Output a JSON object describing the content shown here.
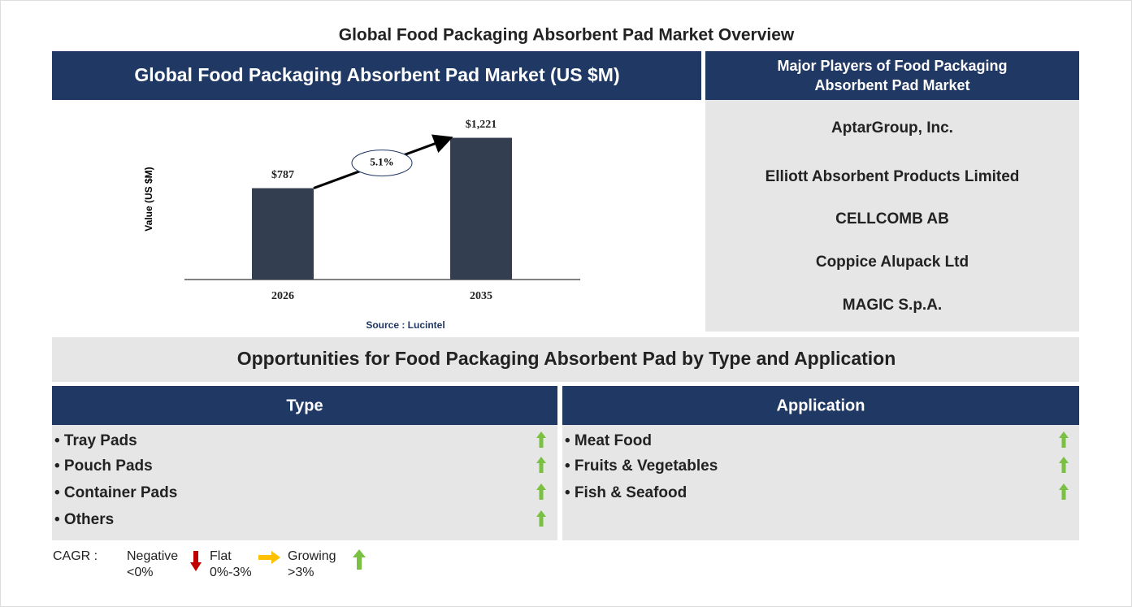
{
  "title": "Global Food Packaging Absorbent Pad Market Overview",
  "chart_panel": {
    "header": "Global Food Packaging Absorbent Pad Market (US $M)"
  },
  "chart_data": {
    "type": "bar",
    "categories": [
      "2026",
      "2035"
    ],
    "values": [
      787,
      1221
    ],
    "value_labels": [
      "$787",
      "$1,221"
    ],
    "color": "#333f50",
    "ylim": [
      0,
      1400
    ],
    "y_label": "Value (US $M)",
    "annotation": "5.1%",
    "source": "Source : Lucintel"
  },
  "players": {
    "header_lines": [
      "Major Players of Food Packaging",
      "Absorbent Pad Market"
    ],
    "items": [
      "AptarGroup, Inc.",
      "Elliott Absorbent Products Limited",
      "CELLCOMB AB",
      "Coppice Alupack Ltd",
      "MAGIC S.p.A."
    ]
  },
  "opportunities": {
    "title": "Opportunities for Food Packaging Absorbent Pad by Type and Application",
    "type": {
      "header": "Type",
      "items": [
        "• Tray Pads",
        "• Pouch Pads",
        "• Container Pads",
        "• Others"
      ]
    },
    "application": {
      "header": "Application",
      "items": [
        "• Meat Food",
        "• Fruits & Vegetables",
        "• Fish & Seafood"
      ]
    }
  },
  "legend": {
    "label": "CAGR :",
    "items": [
      {
        "name": "Negative",
        "range": "<0%"
      },
      {
        "name": "Flat",
        "range": "0%-3%"
      },
      {
        "name": "Growing",
        "range": ">3%"
      }
    ]
  }
}
